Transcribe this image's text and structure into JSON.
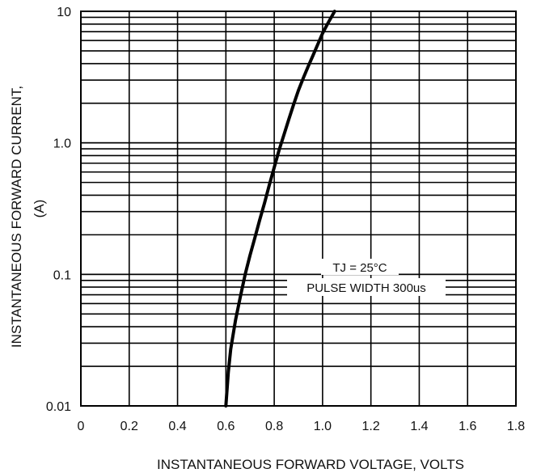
{
  "chart_data": {
    "type": "line",
    "xlabel": "INSTANTANEOUS FORWARD VOLTAGE, VOLTS",
    "ylabel": "INSTANTANEOUS FORWARD CURRENT,",
    "ylabel_unit": "(A)",
    "xlim": [
      0,
      1.8
    ],
    "ylim": [
      0.01,
      10
    ],
    "yscale": "log",
    "grid": true,
    "x_ticks": [
      "0",
      "0.2",
      "0.4",
      "0.6",
      "0.8",
      "1.0",
      "1.2",
      "1.4",
      "1.6",
      "1.8"
    ],
    "x_tick_values": [
      0,
      0.2,
      0.4,
      0.6,
      0.8,
      1.0,
      1.2,
      1.4,
      1.6,
      1.8
    ],
    "y_ticks": [
      "0.01",
      "0.1",
      "1.0",
      "10"
    ],
    "y_tick_values": [
      0.01,
      0.1,
      1.0,
      10
    ],
    "annotations": [
      "TJ = 25°C",
      "PULSE WIDTH 300us"
    ],
    "series": [
      {
        "x": [
          0.6,
          0.61,
          0.62,
          0.64,
          0.66,
          0.68,
          0.7,
          0.72,
          0.74,
          0.76,
          0.78,
          0.8,
          0.82,
          0.84,
          0.86,
          0.88,
          0.9,
          0.92,
          0.94,
          0.96,
          0.98,
          1.0,
          1.02,
          1.05
        ],
        "y": [
          0.01,
          0.018,
          0.027,
          0.045,
          0.068,
          0.1,
          0.14,
          0.19,
          0.26,
          0.35,
          0.48,
          0.65,
          0.88,
          1.15,
          1.5,
          1.95,
          2.5,
          3.1,
          3.8,
          4.6,
          5.6,
          6.8,
          8.0,
          10.0
        ]
      }
    ]
  }
}
